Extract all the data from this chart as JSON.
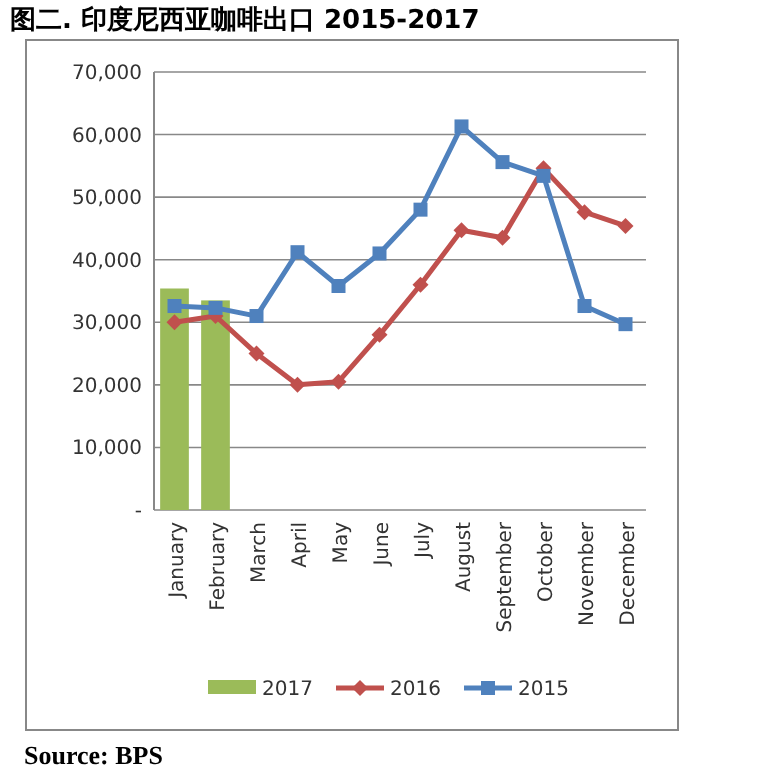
{
  "chart_data": {
    "type": "line",
    "title": "图二. 印度尼西亚咖啡出口 2015-2017",
    "categories": [
      "January",
      "February",
      "March",
      "April",
      "May",
      "June",
      "July",
      "August",
      "September",
      "October",
      "November",
      "December"
    ],
    "series": [
      {
        "name": "2017",
        "type": "bar",
        "color": "#9bbb59",
        "values": [
          35400,
          33500,
          null,
          null,
          null,
          null,
          null,
          null,
          null,
          null,
          null,
          null
        ]
      },
      {
        "name": "2016",
        "color": "#c0504d",
        "marker": "diamond",
        "values": [
          30000,
          31000,
          25000,
          20000,
          20500,
          28000,
          36000,
          44700,
          43500,
          54600,
          47600,
          45400
        ]
      },
      {
        "name": "2015",
        "color": "#4f81bd",
        "marker": "square",
        "values": [
          32600,
          32300,
          31000,
          41200,
          35800,
          41000,
          48000,
          61300,
          55600,
          53400,
          32600,
          29700
        ]
      }
    ],
    "ylim": [
      0,
      70000
    ],
    "yticks": [
      {
        "value": 0,
        "label": "-"
      },
      {
        "value": 10000,
        "label": "10,000"
      },
      {
        "value": 20000,
        "label": "20,000"
      },
      {
        "value": 30000,
        "label": "30,000"
      },
      {
        "value": 40000,
        "label": "40,000"
      },
      {
        "value": 50000,
        "label": "50,000"
      },
      {
        "value": 60000,
        "label": "60,000"
      },
      {
        "value": 70000,
        "label": "70,000"
      }
    ],
    "grid": "y",
    "legend": "bottom",
    "annotations": [
      "Source: BPS"
    ]
  }
}
